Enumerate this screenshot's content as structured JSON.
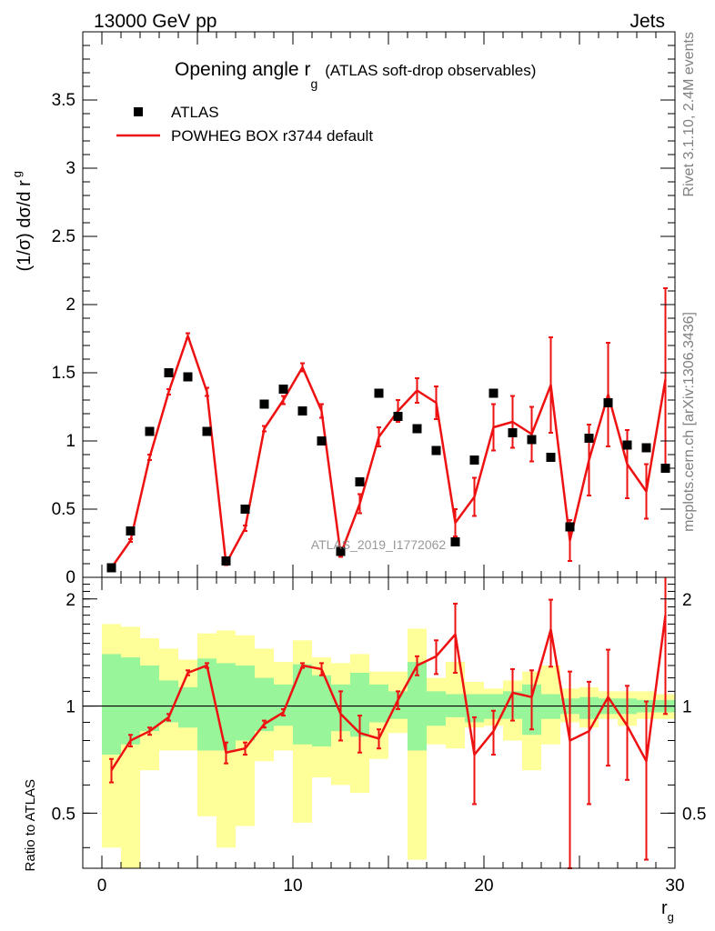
{
  "header": {
    "left": "13000 GeV pp",
    "right": "Jets"
  },
  "side_text": {
    "rivet": "Rivet 3.1.10,  2.4M events",
    "mcplots": "mcplots.cern.ch [arXiv:1306.3436]"
  },
  "colors": {
    "mc": "#ee1111",
    "band_inner": "#99f599",
    "band_outer": "#ffff99",
    "data": "#000000"
  },
  "chart_data": [
    {
      "type": "scatter",
      "title": "Opening angle r",
      "title_sub": "g",
      "title_suffix": "(ATLAS soft-drop observables)",
      "watermark": "ATLAS_2019_I1772062",
      "ylabel_main": "(1/σ) dσ/d r",
      "ylabel_sub": "g",
      "xlim": [
        -1,
        30
      ],
      "ylim": [
        0,
        4
      ],
      "y_ticks": [
        "0",
        "0.5",
        "1",
        "1.5",
        "2",
        "2.5",
        "3",
        "3.5"
      ],
      "legend": [
        {
          "label": "ATLAS",
          "kind": "marker"
        },
        {
          "label": "POWHEG BOX r3744 default",
          "kind": "line"
        }
      ],
      "series": [
        {
          "name": "ATLAS",
          "x": [
            0.5,
            1.5,
            2.5,
            3.5,
            4.5,
            5.5,
            6.5,
            7.5,
            8.5,
            9.5,
            10.5,
            11.5,
            12.5,
            13.5,
            14.5,
            15.5,
            16.5,
            17.5,
            18.5,
            19.5,
            20.5,
            21.5,
            22.5,
            23.5,
            24.5,
            25.5,
            26.5,
            27.5,
            28.5,
            29.5
          ],
          "y": [
            0.07,
            0.34,
            1.07,
            1.5,
            1.47,
            1.07,
            0.12,
            0.5,
            1.27,
            1.38,
            1.22,
            1.0,
            0.19,
            0.7,
            1.35,
            1.18,
            1.09,
            0.93,
            0.26,
            0.86,
            1.35,
            1.06,
            1.01,
            0.88,
            0.37,
            1.02,
            1.28,
            0.97,
            0.95,
            0.8
          ]
        },
        {
          "name": "POWHEG BOX r3744 default",
          "x": [
            0.5,
            1.5,
            2.5,
            3.5,
            4.5,
            5.5,
            6.5,
            7.5,
            8.5,
            9.5,
            10.5,
            11.5,
            12.5,
            13.5,
            14.5,
            15.5,
            16.5,
            17.5,
            18.5,
            19.5,
            20.5,
            21.5,
            22.5,
            23.5,
            24.5,
            25.5,
            26.5,
            27.5,
            28.5,
            29.5
          ],
          "y": [
            0.07,
            0.27,
            0.88,
            1.36,
            1.77,
            1.36,
            0.1,
            0.36,
            1.09,
            1.3,
            1.54,
            1.22,
            0.17,
            0.54,
            1.03,
            1.22,
            1.37,
            1.28,
            0.4,
            0.59,
            1.1,
            1.14,
            1.05,
            1.41,
            0.27,
            0.86,
            1.34,
            0.83,
            0.63,
            1.45
          ],
          "yerr": [
            0.01,
            0.01,
            0.02,
            0.02,
            0.02,
            0.03,
            0.01,
            0.02,
            0.02,
            0.03,
            0.03,
            0.05,
            0.02,
            0.07,
            0.07,
            0.08,
            0.09,
            0.12,
            0.1,
            0.14,
            0.17,
            0.19,
            0.2,
            0.35,
            0.15,
            0.26,
            0.38,
            0.25,
            0.2,
            0.67
          ]
        }
      ]
    },
    {
      "type": "scatter",
      "title": "",
      "ylabel": "Ratio to ATLAS",
      "xlabel": "r",
      "xlabel_sub": "g",
      "xlim": [
        -1,
        30
      ],
      "ylim": [
        0.35,
        2.3
      ],
      "y_ticks": [
        "0.5",
        "1",
        "2"
      ],
      "x_ticks": [
        "0",
        "10",
        "20",
        "30"
      ],
      "bands": {
        "inner": [
          [
            0.73,
            1.4
          ],
          [
            0.78,
            1.37
          ],
          [
            0.85,
            1.3
          ],
          [
            0.9,
            1.18
          ],
          [
            0.87,
            1.13
          ],
          [
            0.75,
            1.36
          ],
          [
            0.75,
            1.32
          ],
          [
            0.8,
            1.3
          ],
          [
            0.85,
            1.2
          ],
          [
            0.88,
            1.15
          ],
          [
            0.78,
            1.31
          ],
          [
            0.77,
            1.22
          ],
          [
            0.85,
            1.15
          ],
          [
            0.82,
            1.24
          ],
          [
            0.9,
            1.15
          ],
          [
            0.92,
            1.1
          ],
          [
            0.75,
            1.33
          ],
          [
            0.88,
            1.1
          ],
          [
            0.93,
            1.08
          ],
          [
            0.9,
            1.08
          ],
          [
            0.92,
            1.08
          ],
          [
            0.92,
            1.1
          ],
          [
            0.83,
            1.15
          ],
          [
            0.92,
            1.08
          ],
          [
            0.95,
            1.05
          ],
          [
            0.92,
            1.06
          ],
          [
            0.95,
            1.05
          ],
          [
            0.95,
            1.05
          ],
          [
            0.96,
            1.04
          ],
          [
            0.96,
            1.04
          ]
        ],
        "outer": [
          [
            0.4,
            1.7
          ],
          [
            0.35,
            1.67
          ],
          [
            0.66,
            1.55
          ],
          [
            0.75,
            1.45
          ],
          [
            0.75,
            1.35
          ],
          [
            0.49,
            1.6
          ],
          [
            0.4,
            1.63
          ],
          [
            0.46,
            1.58
          ],
          [
            0.7,
            1.45
          ],
          [
            0.75,
            1.33
          ],
          [
            0.47,
            1.53
          ],
          [
            0.63,
            1.37
          ],
          [
            0.6,
            1.32
          ],
          [
            0.57,
            1.4
          ],
          [
            0.71,
            1.25
          ],
          [
            0.84,
            1.25
          ],
          [
            0.37,
            1.65
          ],
          [
            0.78,
            1.2
          ],
          [
            0.76,
            1.33
          ],
          [
            0.87,
            1.17
          ],
          [
            0.88,
            1.12
          ],
          [
            0.8,
            1.18
          ],
          [
            0.66,
            1.25
          ],
          [
            0.78,
            1.3
          ],
          [
            0.9,
            1.12
          ],
          [
            0.87,
            1.13
          ],
          [
            0.92,
            1.1
          ],
          [
            0.88,
            1.1
          ],
          [
            0.92,
            1.1
          ],
          [
            0.92,
            1.08
          ]
        ]
      },
      "series": [
        {
          "name": "POWHEG BOX r3744 default",
          "x": [
            0.5,
            1.5,
            2.5,
            3.5,
            4.5,
            5.5,
            6.5,
            7.5,
            8.5,
            9.5,
            10.5,
            11.5,
            12.5,
            13.5,
            14.5,
            15.5,
            16.5,
            17.5,
            18.5,
            19.5,
            20.5,
            21.5,
            22.5,
            23.5,
            24.5,
            25.5,
            26.5,
            27.5,
            28.5,
            29.5
          ],
          "y": [
            0.66,
            0.8,
            0.85,
            0.93,
            1.24,
            1.3,
            0.74,
            0.76,
            0.89,
            0.96,
            1.3,
            1.27,
            0.95,
            0.84,
            0.81,
            1.04,
            1.3,
            1.38,
            1.59,
            0.73,
            0.85,
            1.09,
            1.06,
            1.64,
            0.8,
            0.85,
            1.06,
            0.88,
            0.7,
            1.8
          ],
          "yerr": [
            0.05,
            0.03,
            0.02,
            0.02,
            0.02,
            0.02,
            0.05,
            0.03,
            0.02,
            0.02,
            0.02,
            0.05,
            0.15,
            0.1,
            0.05,
            0.06,
            0.08,
            0.15,
            0.35,
            0.2,
            0.12,
            0.18,
            0.2,
            0.35,
            0.45,
            0.32,
            0.38,
            0.26,
            0.33,
            0.85
          ]
        }
      ]
    }
  ]
}
